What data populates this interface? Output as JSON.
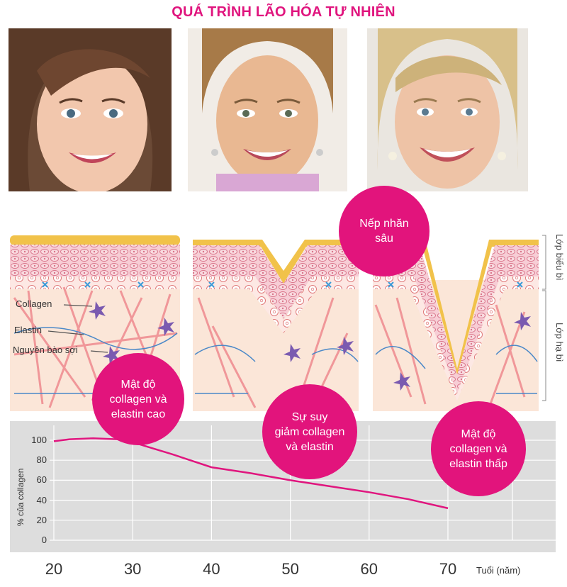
{
  "title": "QUÁ TRÌNH LÃO HÓA TỰ NHIÊN",
  "colors": {
    "accent": "#e2147c",
    "chart_bg": "#dddddd",
    "line": "#e0157e"
  },
  "photos": [
    {
      "subject": "young-woman-face"
    },
    {
      "subject": "middle-aged-woman-face"
    },
    {
      "subject": "older-woman-face"
    }
  ],
  "layers": {
    "epidermis": "Lớp biểu bì",
    "dermis": "Lớp hạ bì"
  },
  "annotations": {
    "collagen": "Collagen",
    "elastin": "Elastin",
    "fibroblast": "Nguyên bào sợi"
  },
  "bubbles": {
    "wrinkle": "Nếp nhăn\nsâu",
    "high": "Mật độ\ncollagen và\nelastin cao",
    "decline": "Sự suy\ngiảm collagen\nvà elastin",
    "low": "Mật độ\ncollagen và\nelastin thấp"
  },
  "chart_data": {
    "type": "line",
    "ylabel": "% của collagen",
    "xlabel": "Tuổi (năm)",
    "x_ticks": [
      "20",
      "30",
      "40",
      "50",
      "60",
      "70"
    ],
    "y_ticks": [
      "100",
      "80",
      "60",
      "40",
      "20",
      "0"
    ],
    "ylim": [
      0,
      100
    ],
    "xlim": [
      20,
      70
    ],
    "grid": true,
    "series": [
      {
        "values": [
          [
            20,
            99
          ],
          [
            22,
            101
          ],
          [
            25,
            102
          ],
          [
            28,
            101
          ],
          [
            30,
            98
          ],
          [
            35,
            86
          ],
          [
            40,
            73
          ],
          [
            45,
            67
          ],
          [
            50,
            60
          ],
          [
            55,
            54
          ],
          [
            60,
            48
          ],
          [
            65,
            41
          ],
          [
            70,
            32
          ]
        ]
      }
    ]
  }
}
